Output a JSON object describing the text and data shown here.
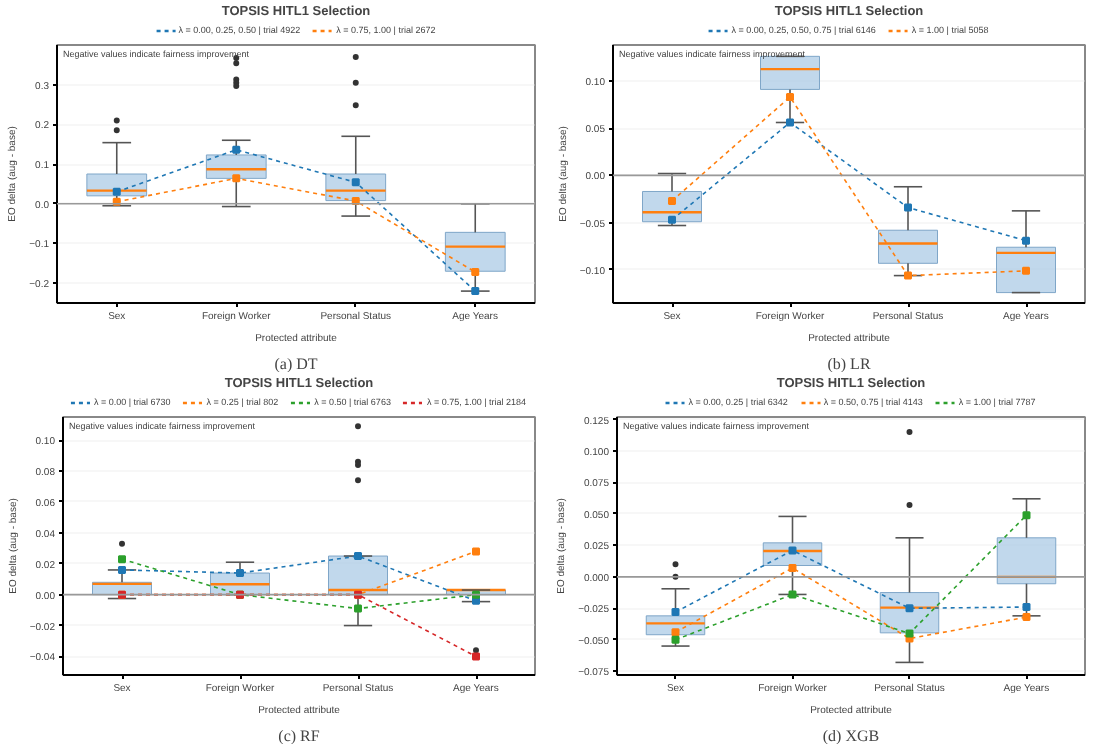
{
  "chart_data": [
    {
      "type": "box",
      "title": "TOPSIS HITL1 Selection",
      "xlabel": "Protected attribute",
      "ylabel": "EO delta (aug - base)",
      "annotations": [
        "Negative values indicate fairness improvement",
        "(a) DT"
      ],
      "categories": [
        "Sex",
        "Foreign Worker",
        "Personal Status",
        "Age Years"
      ],
      "ylim": [
        -0.25,
        0.4
      ],
      "yticks": [
        {
          "value": -0.2,
          "label": "−0.2"
        },
        {
          "value": -0.1,
          "label": "−0.1"
        },
        {
          "value": 0,
          "label": "0.0"
        },
        {
          "value": 0.1,
          "label": "0.1"
        },
        {
          "value": 0.2,
          "label": "0.2"
        },
        {
          "value": 0.3,
          "label": "0.3"
        }
      ],
      "grid": "y",
      "legend": "top",
      "marker": "square",
      "line_style": "dotted",
      "ref_lines": [
        {
          "axis": "y",
          "value": 0,
          "color": "#999999"
        }
      ],
      "boxes": [
        {
          "low": -0.005,
          "q1": 0.02,
          "median": 0.033,
          "q3": 0.075,
          "high": 0.154,
          "outliers": [
            0.21,
            0.185
          ]
        },
        {
          "low": -0.007,
          "q1": 0.064,
          "median": 0.087,
          "q3": 0.123,
          "high": 0.16,
          "outliers": [
            0.367,
            0.354,
            0.313,
            0.305,
            0.297
          ]
        },
        {
          "low": -0.031,
          "q1": 0.008,
          "median": 0.033,
          "q3": 0.075,
          "high": 0.17,
          "outliers": [
            0.37,
            0.305,
            0.248
          ]
        },
        {
          "low": -0.22,
          "q1": -0.17,
          "median": -0.108,
          "q3": -0.072,
          "high": 0
        }
      ],
      "series": [
        {
          "type": "line",
          "name": "λ = 0.00, 0.25, 0.50 | trial 4922",
          "color": "#1f77b4",
          "values": [
            0.03,
            0.136,
            0.054,
            -0.22
          ]
        },
        {
          "type": "line",
          "name": "λ = 0.75, 1.00 | trial 2672",
          "color": "#ff7f0e",
          "values": [
            0.005,
            0.064,
            0.007,
            -0.172
          ]
        }
      ]
    },
    {
      "type": "box",
      "title": "TOPSIS HITL1 Selection",
      "xlabel": "Protected attribute",
      "ylabel": "EO delta (aug - base)",
      "annotations": [
        "Negative values indicate fairness improvement",
        "(b) LR"
      ],
      "categories": [
        "Sex",
        "Foreign Worker",
        "Personal Status",
        "Age Years"
      ],
      "ylim": [
        -0.135,
        0.138
      ],
      "yticks": [
        {
          "value": -0.1,
          "label": "−0.10"
        },
        {
          "value": -0.05,
          "label": "−0.05"
        },
        {
          "value": 0,
          "label": "0.00"
        },
        {
          "value": 0.05,
          "label": "0.05"
        },
        {
          "value": 0.1,
          "label": "0.10"
        }
      ],
      "grid": "y",
      "legend": "top",
      "marker": "square",
      "line_style": "dotted",
      "ref_lines": [
        {
          "axis": "y",
          "value": 0,
          "color": "#999999"
        }
      ],
      "boxes": [
        {
          "low": -0.053,
          "q1": -0.049,
          "median": -0.039,
          "q3": -0.017,
          "high": 0.002
        },
        {
          "low": 0.056,
          "q1": 0.091,
          "median": 0.1125,
          "q3": 0.126,
          "high": 0.126
        },
        {
          "low": -0.106,
          "q1": -0.093,
          "median": -0.072,
          "q3": -0.058,
          "high": -0.012
        },
        {
          "low": -0.124,
          "q1": -0.124,
          "median": -0.082,
          "q3": -0.076,
          "high": -0.0375
        }
      ],
      "series": [
        {
          "type": "line",
          "name": "λ = 0.00, 0.25, 0.50, 0.75 | trial 6146",
          "color": "#1f77b4",
          "values": [
            -0.047,
            0.056,
            -0.034,
            -0.069
          ]
        },
        {
          "type": "line",
          "name": "λ = 1.00 | trial 5058",
          "color": "#ff7f0e",
          "values": [
            -0.027,
            0.083,
            -0.106,
            -0.101
          ]
        }
      ]
    },
    {
      "type": "box",
      "title": "TOPSIS HITL1 Selection",
      "xlabel": "Protected attribute",
      "ylabel": "EO delta (aug - base)",
      "annotations": [
        "Negative values indicate fairness improvement",
        "(c) RF"
      ],
      "categories": [
        "Sex",
        "Foreign Worker",
        "Personal Status",
        "Age Years"
      ],
      "ylim": [
        -0.052,
        0.115
      ],
      "yticks": [
        {
          "value": -0.04,
          "label": "−0.04"
        },
        {
          "value": -0.02,
          "label": "−0.02"
        },
        {
          "value": 0,
          "label": "0.00"
        },
        {
          "value": 0.02,
          "label": "0.02"
        },
        {
          "value": 0.04,
          "label": "0.04"
        },
        {
          "value": 0.06,
          "label": "0.06"
        },
        {
          "value": 0.08,
          "label": "0.08"
        },
        {
          "value": 0.1,
          "label": "0.10"
        }
      ],
      "grid": "y",
      "legend": "top",
      "marker": "square",
      "line_style": "dotted",
      "ref_lines": [
        {
          "axis": "y",
          "value": 0,
          "color": "#999999"
        }
      ],
      "boxes": [
        {
          "low": -0.0025,
          "q1": 0,
          "median": 0.007,
          "q3": 0.008,
          "high": 0.016,
          "outliers": [
            0.033
          ]
        },
        {
          "low": 0,
          "q1": 0,
          "median": 0.0067,
          "q3": 0.014,
          "high": 0.021
        },
        {
          "low": -0.02,
          "q1": 0,
          "median": 0.003,
          "q3": 0.025,
          "high": 0.025,
          "outliers": [
            0.109,
            0.086,
            0.084,
            0.074
          ]
        },
        {
          "low": -0.0045,
          "q1": 0,
          "median": 0.003,
          "q3": 0.003,
          "high": 0.003,
          "outliers": [
            -0.036
          ]
        }
      ],
      "series": [
        {
          "type": "line",
          "name": "λ = 0.00 | trial 6730",
          "color": "#1f77b4",
          "values": [
            0.016,
            0.014,
            0.025,
            -0.004
          ]
        },
        {
          "type": "line",
          "name": "λ = 0.25 | trial 802",
          "color": "#ff7f0e",
          "values": [
            0,
            0,
            0,
            0.028
          ]
        },
        {
          "type": "line",
          "name": "λ = 0.50 | trial 6763",
          "color": "#2ca02c",
          "values": [
            0.023,
            0,
            -0.009,
            0
          ]
        },
        {
          "type": "line",
          "name": "λ = 0.75, 1.00 | trial 2184",
          "color": "#d62728",
          "values": [
            0,
            0,
            0,
            -0.04
          ]
        }
      ]
    },
    {
      "type": "box",
      "title": "TOPSIS HITL1 Selection",
      "xlabel": "Protected attribute",
      "ylabel": "EO delta (aug - base)",
      "annotations": [
        "Negative values indicate fairness improvement",
        "(d) XGB"
      ],
      "categories": [
        "Sex",
        "Foreign Worker",
        "Personal Status",
        "Age Years"
      ],
      "ylim": [
        -0.078,
        0.127
      ],
      "yticks": [
        {
          "value": -0.075,
          "label": "−0.075"
        },
        {
          "value": -0.05,
          "label": "−0.050"
        },
        {
          "value": -0.025,
          "label": "−0.025"
        },
        {
          "value": 0,
          "label": "0.000"
        },
        {
          "value": 0.025,
          "label": "0.025"
        },
        {
          "value": 0.05,
          "label": "0.050"
        },
        {
          "value": 0.075,
          "label": "0.075"
        },
        {
          "value": 0.1,
          "label": "0.100"
        },
        {
          "value": 0.125,
          "label": "0.125"
        }
      ],
      "grid": "y",
      "legend": "top",
      "marker": "square",
      "line_style": "dotted",
      "ref_lines": [
        {
          "axis": "y",
          "value": 0,
          "color": "#999999"
        }
      ],
      "boxes": [
        {
          "low": -0.055,
          "q1": -0.046,
          "median": -0.037,
          "q3": -0.031,
          "high": -0.0095,
          "outliers": [
            0,
            0.01
          ]
        },
        {
          "low": -0.014,
          "q1": 0.009,
          "median": 0.0205,
          "q3": 0.027,
          "high": 0.048
        },
        {
          "low": -0.068,
          "q1": -0.0445,
          "median": -0.0245,
          "q3": -0.0125,
          "high": 0.031,
          "outliers": [
            0.057,
            0.115
          ]
        },
        {
          "low": -0.031,
          "q1": -0.0055,
          "median": 0,
          "q3": 0.031,
          "high": 0.062
        }
      ],
      "series": [
        {
          "type": "line",
          "name": "λ = 0.00, 0.25 | trial 6342",
          "color": "#1f77b4",
          "values": [
            -0.028,
            0.021,
            -0.025,
            -0.024
          ]
        },
        {
          "type": "line",
          "name": "λ = 0.50, 0.75 | trial 4143",
          "color": "#ff7f0e",
          "values": [
            -0.044,
            0.007,
            -0.049,
            -0.032
          ]
        },
        {
          "type": "line",
          "name": "λ = 1.00 | trial 7787",
          "color": "#2ca02c",
          "values": [
            -0.05,
            -0.014,
            -0.045,
            0.049
          ]
        }
      ]
    }
  ]
}
